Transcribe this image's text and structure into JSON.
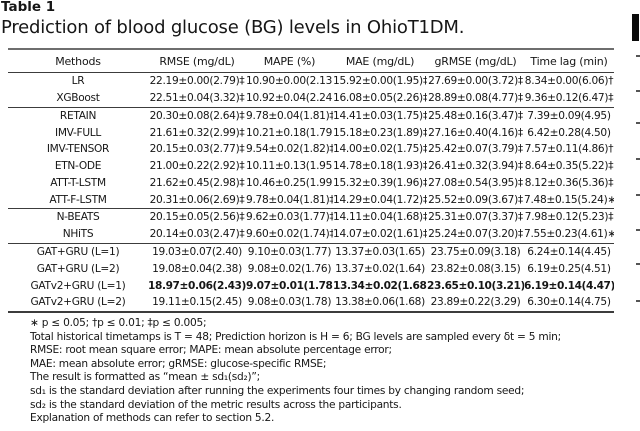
{
  "page": {
    "table_label": "Table 1",
    "caption": "Prediction of blood glucose (BG) levels in OhioT1DM."
  },
  "colors": {
    "text": "#161616",
    "rule_heavy": "#6e6e6e",
    "rule_dark": "#3c3c3c",
    "background": "#ffffff"
  },
  "table": {
    "columns": [
      "Methods",
      "RMSE (mg/dL)",
      "MAPE (%)",
      "MAE (mg/dL)",
      "gRMSE (mg/dL)",
      "Time lag (min)"
    ],
    "groups": [
      {
        "rows": [
          {
            "method": "LR",
            "bold": false,
            "values": [
              "22.19±0.00(2.79)‡",
              "10.90±0.00(2.13)‡",
              "15.92±0.00(1.95)‡",
              "27.69±0.00(3.72)‡",
              "8.34±0.00(6.06)†"
            ]
          },
          {
            "method": "XGBoost",
            "bold": false,
            "values": [
              "22.51±0.04(3.32)‡",
              "10.92±0.04(2.24)‡",
              "16.08±0.05(2.26)‡",
              "28.89±0.08(4.77)‡",
              "9.36±0.12(6.47)‡"
            ]
          }
        ]
      },
      {
        "rows": [
          {
            "method": "RETAIN",
            "bold": false,
            "values": [
              "20.30±0.08(2.64)‡",
              "9.78±0.04(1.81)‡",
              "14.41±0.03(1.75)‡",
              "25.48±0.16(3.47)‡",
              "7.39±0.09(4.95)"
            ]
          },
          {
            "method": "IMV-FULL",
            "bold": false,
            "values": [
              "21.61±0.32(2.99)‡",
              "10.21±0.18(1.79)‡",
              "15.18±0.23(1.89)‡",
              "27.16±0.40(4.16)‡",
              "6.42±0.28(4.50)"
            ]
          },
          {
            "method": "IMV-TENSOR",
            "bold": false,
            "values": [
              "20.15±0.03(2.77)‡",
              "9.54±0.02(1.82)‡",
              "14.00±0.02(1.75)‡",
              "25.42±0.07(3.79)‡",
              "7.57±0.11(4.86)†"
            ]
          },
          {
            "method": "ETN-ODE",
            "bold": false,
            "values": [
              "21.00±0.22(2.92)‡",
              "10.11±0.13(1.95)‡",
              "14.78±0.18(1.93)‡",
              "26.41±0.32(3.94)‡",
              "8.64±0.35(5.22)‡"
            ]
          },
          {
            "method": "ATT-T-LSTM",
            "bold": false,
            "values": [
              "21.62±0.45(2.98)‡",
              "10.46±0.25(1.99)‡",
              "15.32±0.39(1.96)‡",
              "27.08±0.54(3.95)‡",
              "8.12±0.36(5.36)‡"
            ]
          },
          {
            "method": "ATT-F-LSTM",
            "bold": false,
            "values": [
              "20.31±0.06(2.69)‡",
              "9.78±0.04(1.81)‡",
              "14.29±0.04(1.72)‡",
              "25.52±0.09(3.67)‡",
              "7.48±0.15(5.24)∗"
            ]
          }
        ]
      },
      {
        "rows": [
          {
            "method": "N-BEATS",
            "bold": false,
            "values": [
              "20.15±0.05(2.56)‡",
              "9.62±0.03(1.77)‡",
              "14.11±0.04(1.68)‡",
              "25.31±0.07(3.37)‡",
              "7.98±0.12(5.23)‡"
            ]
          },
          {
            "method": "NHiTS",
            "bold": false,
            "values": [
              "20.14±0.03(2.47)‡",
              "9.60±0.02(1.74)‡",
              "14.07±0.02(1.61)‡",
              "25.24±0.07(3.20)‡",
              "7.55±0.23(4.61)∗"
            ]
          }
        ]
      },
      {
        "rows": [
          {
            "method": "GAT+GRU (L=1)",
            "bold": false,
            "values": [
              "19.03±0.07(2.40)",
              "9.10±0.03(1.77)",
              "13.37±0.03(1.65)",
              "23.75±0.09(3.18)",
              "6.24±0.14(4.45)"
            ]
          },
          {
            "method": "GAT+GRU (L=2)",
            "bold": false,
            "values": [
              "19.08±0.04(2.38)",
              "9.08±0.02(1.76)",
              "13.37±0.02(1.64)",
              "23.82±0.08(3.15)",
              "6.19±0.25(4.51)"
            ]
          },
          {
            "method": "GATv2+GRU (L=1)",
            "bold": true,
            "values": [
              "18.97±0.06(2.43)",
              "9.07±0.01(1.78)",
              "13.34±0.02(1.68)",
              "23.65±0.10(3.21)",
              "6.19±0.14(4.47)"
            ]
          },
          {
            "method": "GATv2+GRU (L=2)",
            "bold": false,
            "values": [
              "19.11±0.15(2.45)",
              "9.08±0.03(1.78)",
              "13.38±0.06(1.68)",
              "23.89±0.22(3.29)",
              "6.30±0.14(4.75)"
            ]
          }
        ]
      }
    ]
  },
  "footnotes": [
    "∗ p ≤ 0.05; †p ≤ 0.01; ‡p ≤ 0.005;",
    "Total historical timetamps is T = 48; Prediction horizon is H = 6; BG levels are sampled every δt = 5 min;",
    "RMSE: root mean square error; MAPE: mean absolute percentage error;",
    "MAE: mean absolute error; gRMSE: glucose-specific RMSE;",
    "The result is formatted as “mean ± sd₁(sd₂)”;",
    "sd₁ is the standard deviation after running the experiments four times by changing random seed;",
    "sd₂ is the standard deviation of the metric results across the participants.",
    "Explanation of methods can refer to section 5.2."
  ]
}
